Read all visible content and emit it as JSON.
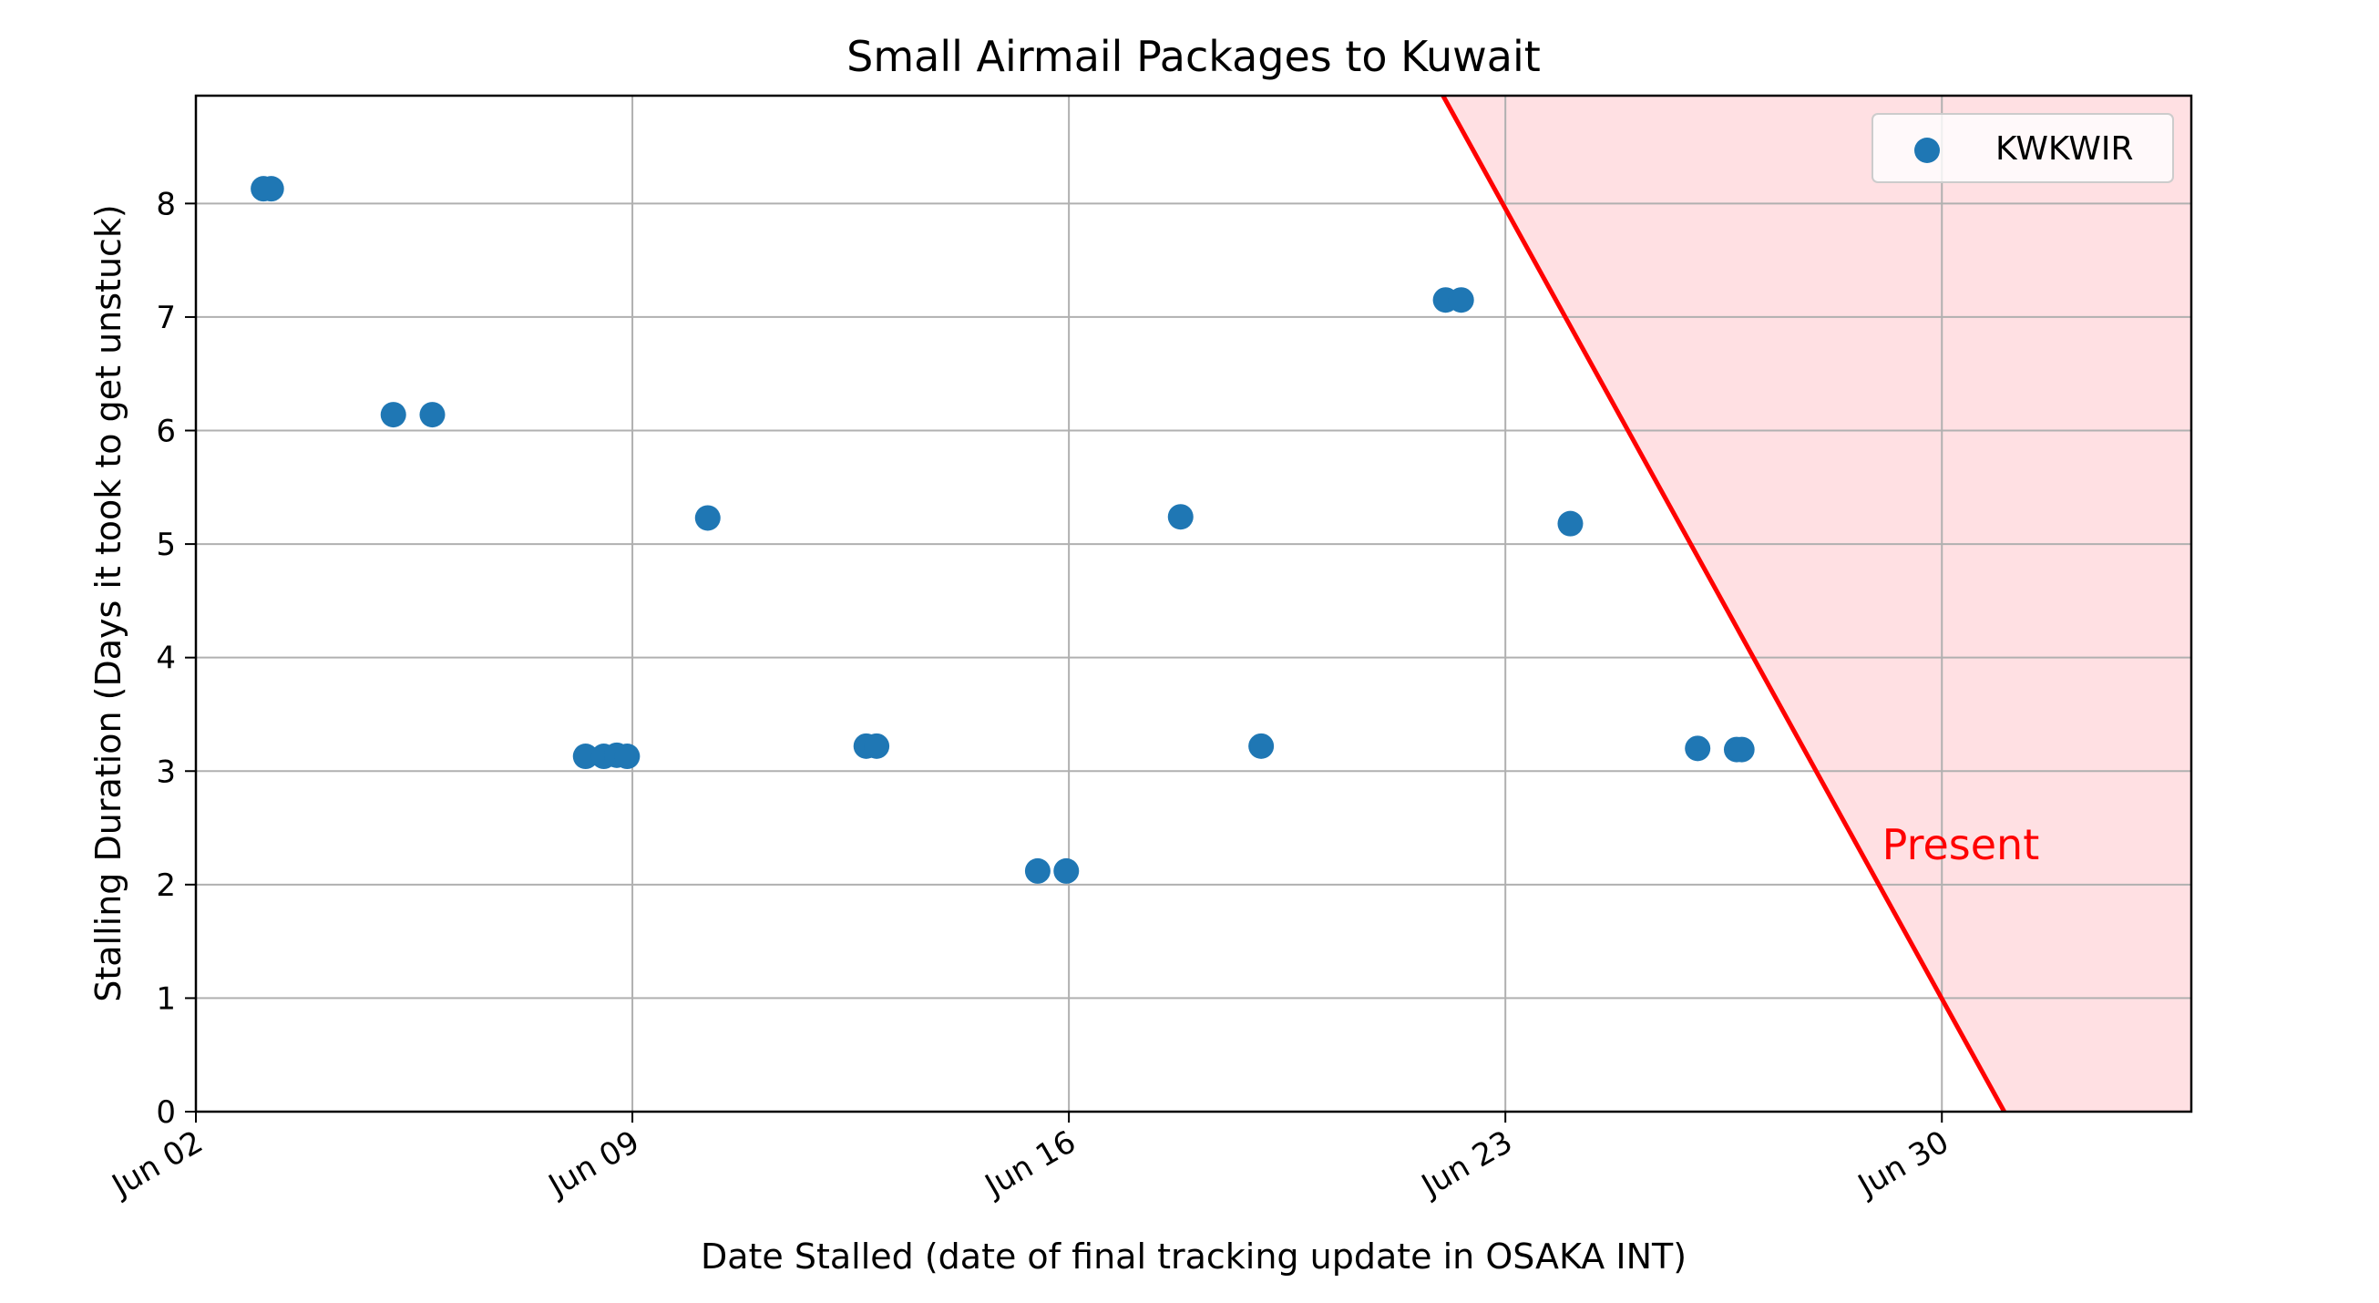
{
  "chart_data": {
    "type": "scatter",
    "title": "Small Airmail Packages to Kuwait",
    "xlabel": "Date Stalled (date of final tracking update in OSAKA INT)",
    "ylabel": "Stalling Duration (Days it took to get unstuck)",
    "xlim": [
      "2024-06-02",
      "2024-07-04"
    ],
    "ylim": [
      0,
      8.95
    ],
    "x_ticks": [
      {
        "date": "2024-06-02",
        "label": "Jun 02"
      },
      {
        "date": "2024-06-09",
        "label": "Jun 09"
      },
      {
        "date": "2024-06-16",
        "label": "Jun 16"
      },
      {
        "date": "2024-06-23",
        "label": "Jun 23"
      },
      {
        "date": "2024-06-30",
        "label": "Jun 30"
      }
    ],
    "y_ticks": [
      0,
      1,
      2,
      3,
      4,
      5,
      6,
      7,
      8
    ],
    "grid": true,
    "legend_position": "top-right",
    "series": [
      {
        "name": "KWKWIR",
        "color": "#1f77b4",
        "points": [
          {
            "x": "2024-06-03 02:00",
            "y": 8.13
          },
          {
            "x": "2024-06-03 05:00",
            "y": 8.13
          },
          {
            "x": "2024-06-05 04:00",
            "y": 6.14
          },
          {
            "x": "2024-06-05 19:00",
            "y": 6.14
          },
          {
            "x": "2024-06-08 06:00",
            "y": 3.13
          },
          {
            "x": "2024-06-08 13:00",
            "y": 3.13
          },
          {
            "x": "2024-06-08 18:00",
            "y": 3.14
          },
          {
            "x": "2024-06-08 22:00",
            "y": 3.13
          },
          {
            "x": "2024-06-10 05:00",
            "y": 5.23
          },
          {
            "x": "2024-06-12 18:00",
            "y": 3.22
          },
          {
            "x": "2024-06-12 22:00",
            "y": 3.22
          },
          {
            "x": "2024-06-15 12:00",
            "y": 2.12
          },
          {
            "x": "2024-06-15 23:00",
            "y": 2.12
          },
          {
            "x": "2024-06-17 19:00",
            "y": 5.24
          },
          {
            "x": "2024-06-19 02:00",
            "y": 3.22
          },
          {
            "x": "2024-06-22 01:00",
            "y": 7.15
          },
          {
            "x": "2024-06-22 07:00",
            "y": 7.15
          },
          {
            "x": "2024-06-24 01:00",
            "y": 5.18
          },
          {
            "x": "2024-06-26 02:00",
            "y": 3.2
          },
          {
            "x": "2024-06-26 17:00",
            "y": 3.19
          },
          {
            "x": "2024-06-26 19:00",
            "y": 3.19
          }
        ]
      }
    ],
    "threshold": {
      "color": "#ff0000",
      "fill_color": "#ffe0e3",
      "from": {
        "x": "2024-06-22",
        "y": 8.95
      },
      "to": {
        "x": "2024-07-01",
        "y": 0
      }
    },
    "annotation": {
      "text": "Present",
      "x": "2024-06-29 01:00",
      "y": 2.35,
      "color": "#ff0000"
    }
  }
}
